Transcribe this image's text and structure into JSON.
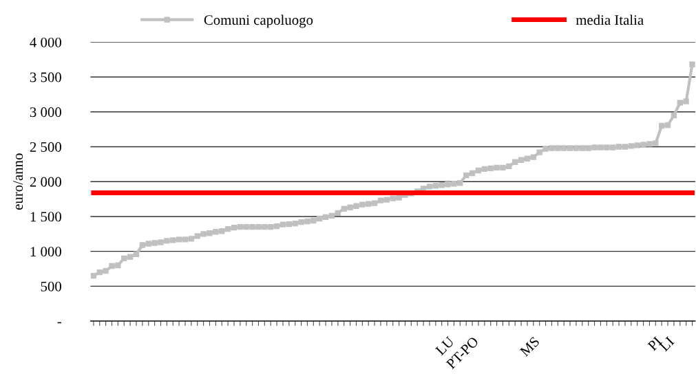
{
  "chart_data": {
    "type": "line",
    "ylabel": "euro/anno",
    "categories": [
      null,
      null,
      null,
      null,
      null,
      null,
      null,
      null,
      null,
      null,
      null,
      null,
      null,
      null,
      null,
      null,
      null,
      null,
      null,
      null,
      null,
      null,
      null,
      null,
      null,
      null,
      null,
      null,
      null,
      null,
      null,
      null,
      null,
      null,
      null,
      null,
      null,
      null,
      null,
      null,
      null,
      null,
      null,
      null,
      null,
      null,
      null,
      null,
      null,
      null,
      null,
      null,
      null,
      null,
      null,
      null,
      null,
      null,
      "LU",
      null,
      null,
      null,
      "PT-PO",
      null,
      null,
      null,
      null,
      null,
      null,
      null,
      null,
      null,
      "MS",
      null,
      null,
      null,
      null,
      null,
      null,
      null,
      null,
      null,
      null,
      null,
      null,
      null,
      null,
      null,
      null,
      null,
      null,
      null,
      "PI",
      null,
      "LI",
      null,
      null,
      null,
      null
    ],
    "series": [
      {
        "name": "Comuni capoluogo",
        "color": "#c0c0c0",
        "marker": "square",
        "values": [
          650,
          700,
          720,
          790,
          800,
          900,
          920,
          960,
          1090,
          1110,
          1120,
          1130,
          1150,
          1160,
          1170,
          1170,
          1180,
          1220,
          1250,
          1260,
          1280,
          1290,
          1320,
          1340,
          1350,
          1350,
          1350,
          1350,
          1350,
          1350,
          1360,
          1385,
          1390,
          1400,
          1420,
          1430,
          1440,
          1470,
          1490,
          1510,
          1550,
          1610,
          1630,
          1650,
          1670,
          1680,
          1690,
          1730,
          1740,
          1760,
          1770,
          1810,
          1830,
          1860,
          1900,
          1930,
          1940,
          1950,
          1960,
          1970,
          1980,
          2090,
          2120,
          2160,
          2180,
          2190,
          2200,
          2200,
          2220,
          2280,
          2310,
          2330,
          2350,
          2420,
          2470,
          2480,
          2480,
          2480,
          2480,
          2480,
          2480,
          2480,
          2490,
          2490,
          2490,
          2490,
          2500,
          2500,
          2510,
          2520,
          2530,
          2540,
          2550,
          2800,
          2810,
          2950,
          3130,
          3150,
          3680
        ]
      },
      {
        "name": "media Italia",
        "color": "#ff0000",
        "values": [
          1840,
          1840,
          1840,
          1840,
          1840,
          1840,
          1840,
          1840,
          1840,
          1840,
          1840,
          1840,
          1840,
          1840,
          1840,
          1840,
          1840,
          1840,
          1840,
          1840,
          1840,
          1840,
          1840,
          1840,
          1840,
          1840,
          1840,
          1840,
          1840,
          1840,
          1840,
          1840,
          1840,
          1840,
          1840,
          1840,
          1840,
          1840,
          1840,
          1840,
          1840,
          1840,
          1840,
          1840,
          1840,
          1840,
          1840,
          1840,
          1840,
          1840,
          1840,
          1840,
          1840,
          1840,
          1840,
          1840,
          1840,
          1840,
          1840,
          1840,
          1840,
          1840,
          1840,
          1840,
          1840,
          1840,
          1840,
          1840,
          1840,
          1840,
          1840,
          1840,
          1840,
          1840,
          1840,
          1840,
          1840,
          1840,
          1840,
          1840,
          1840,
          1840,
          1840,
          1840,
          1840,
          1840,
          1840,
          1840,
          1840,
          1840,
          1840,
          1840,
          1840,
          1840,
          1840,
          1840,
          1840,
          1840,
          1840
        ]
      }
    ],
    "ylim": [
      0,
      4000
    ],
    "yticks": [
      {
        "value": 0,
        "label": "-"
      },
      500,
      {
        "value": 1000,
        "label": "1 000"
      },
      {
        "value": 1500,
        "label": "1 500"
      },
      {
        "value": 2000,
        "label": "2 000"
      },
      {
        "value": 2500,
        "label": "2 500"
      },
      {
        "value": 3000,
        "label": "3 000"
      },
      {
        "value": 3500,
        "label": "3 500"
      },
      {
        "value": 4000,
        "label": "4 000"
      }
    ],
    "grid": "y",
    "legend": "top"
  }
}
